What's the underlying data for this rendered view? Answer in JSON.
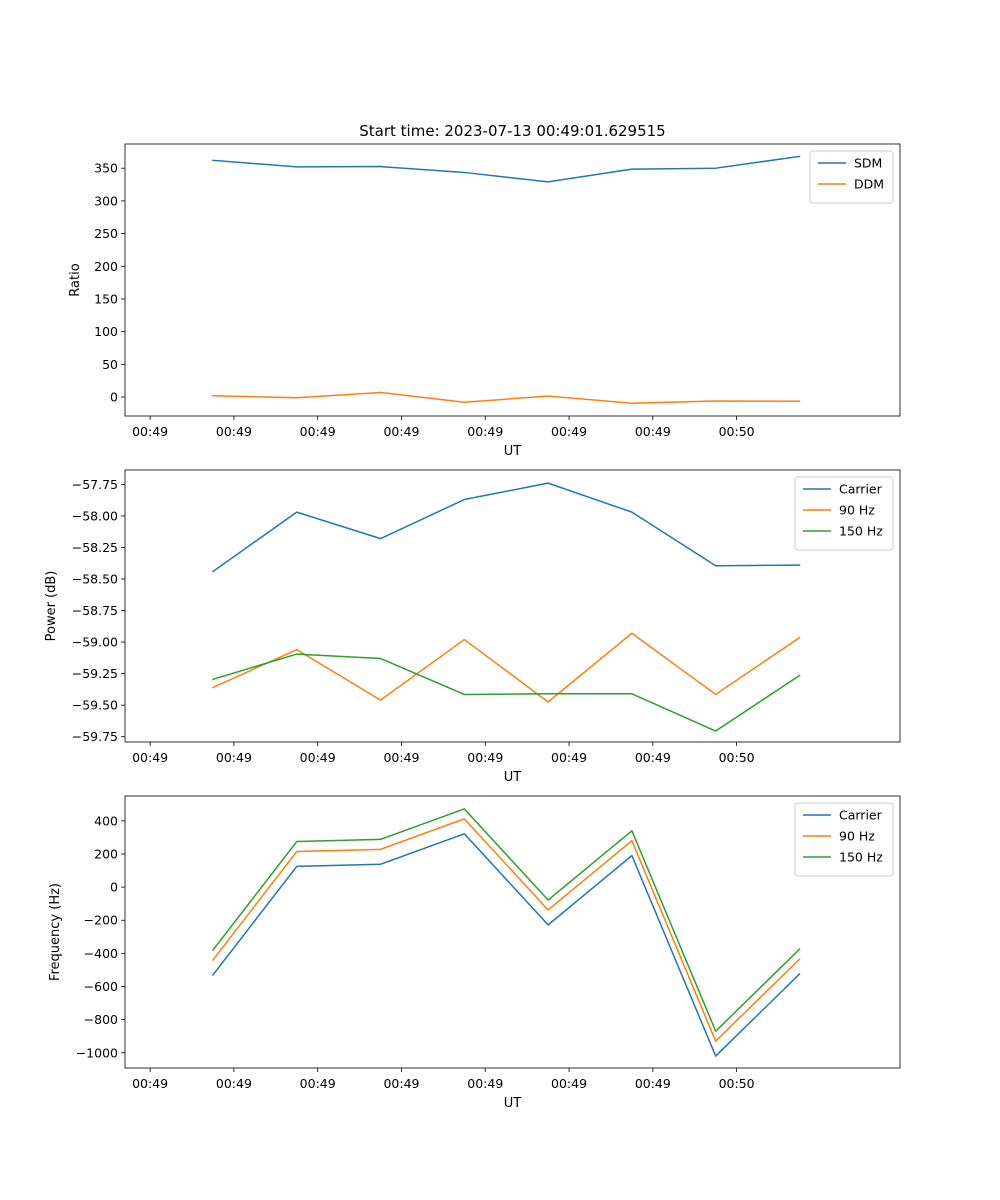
{
  "colors": {
    "blue": "#1f77b4",
    "orange": "#ff7f0e",
    "green": "#2ca02c"
  },
  "figure_title": "Start time: 2023-07-13 00:49:01.629515",
  "chart_data": [
    {
      "type": "line",
      "title": "Start time: 2023-07-13 00:49:01.629515",
      "xlabel": "UT",
      "ylabel": "Ratio",
      "x_tick_labels": [
        "00:49",
        "00:49",
        "00:49",
        "00:49",
        "00:49",
        "00:49",
        "00:49",
        "00:50"
      ],
      "y_ticks": [
        0,
        50,
        100,
        150,
        200,
        250,
        300,
        350
      ],
      "y_tick_labels": [
        "0",
        "50",
        "100",
        "150",
        "200",
        "250",
        "300",
        "350"
      ],
      "ylim": [
        -29,
        387
      ],
      "xlim": [
        -0.3,
        8.95
      ],
      "x": [
        0.75,
        1.75,
        2.75,
        3.75,
        4.75,
        5.75,
        6.75,
        7.75
      ],
      "legend": "upper right",
      "series": [
        {
          "name": "SDM",
          "color": "#1f77b4",
          "values": [
            362,
            352,
            352.5,
            343.5,
            329,
            348.5,
            350,
            368
          ]
        },
        {
          "name": "DDM",
          "color": "#ff7f0e",
          "values": [
            2,
            -1,
            7,
            -8,
            1.5,
            -9.5,
            -6,
            -6.5
          ]
        }
      ]
    },
    {
      "type": "line",
      "title": "",
      "xlabel": "UT",
      "ylabel": "Power (dB)",
      "x_tick_labels": [
        "00:49",
        "00:49",
        "00:49",
        "00:49",
        "00:49",
        "00:49",
        "00:49",
        "00:50"
      ],
      "y_ticks": [
        -59.75,
        -59.5,
        -59.25,
        -59.0,
        -58.75,
        -58.5,
        -58.25,
        -58.0,
        -57.75
      ],
      "y_tick_labels": [
        "−59.75",
        "−59.50",
        "−59.25",
        "−59.00",
        "−58.75",
        "−58.50",
        "−58.25",
        "−58.00",
        "−57.75"
      ],
      "ylim": [
        -59.792,
        -57.636
      ],
      "xlim": [
        -0.3,
        8.95
      ],
      "x": [
        0.75,
        1.75,
        2.75,
        3.75,
        4.75,
        5.75,
        6.75,
        7.75
      ],
      "legend": "upper right",
      "series": [
        {
          "name": "Carrier",
          "color": "#1f77b4",
          "values": [
            -58.44,
            -57.97,
            -58.18,
            -57.87,
            -57.74,
            -57.97,
            -58.395,
            -58.39
          ]
        },
        {
          "name": "90 Hz",
          "color": "#ff7f0e",
          "values": [
            -59.36,
            -59.06,
            -59.46,
            -58.98,
            -59.475,
            -58.93,
            -59.415,
            -58.965
          ]
        },
        {
          "name": "150 Hz",
          "color": "#2ca02c",
          "values": [
            -59.295,
            -59.095,
            -59.13,
            -59.415,
            -59.41,
            -59.41,
            -59.705,
            -59.265
          ]
        }
      ]
    },
    {
      "type": "line",
      "title": "",
      "xlabel": "UT",
      "ylabel": "Frequency (Hz)",
      "x_tick_labels": [
        "00:49",
        "00:49",
        "00:49",
        "00:49",
        "00:49",
        "00:49",
        "00:49",
        "00:50"
      ],
      "y_ticks": [
        -1000,
        -800,
        -600,
        -400,
        -200,
        0,
        200,
        400
      ],
      "y_tick_labels": [
        "−1000",
        "−800",
        "−600",
        "−400",
        "−200",
        "0",
        "200",
        "400"
      ],
      "ylim": [
        -1092,
        550
      ],
      "xlim": [
        -0.3,
        8.95
      ],
      "x": [
        0.75,
        1.75,
        2.75,
        3.75,
        4.75,
        5.75,
        6.75,
        7.75
      ],
      "legend": "upper right",
      "series": [
        {
          "name": "Carrier",
          "color": "#1f77b4",
          "values": [
            -530,
            125,
            138,
            322,
            -228,
            190,
            -1020,
            -525
          ]
        },
        {
          "name": "90 Hz",
          "color": "#ff7f0e",
          "values": [
            -440,
            215,
            228,
            412,
            -138,
            280,
            -930,
            -435
          ]
        },
        {
          "name": "150 Hz",
          "color": "#2ca02c",
          "values": [
            -380,
            275,
            288,
            472,
            -78,
            340,
            -870,
            -375
          ]
        }
      ]
    }
  ]
}
